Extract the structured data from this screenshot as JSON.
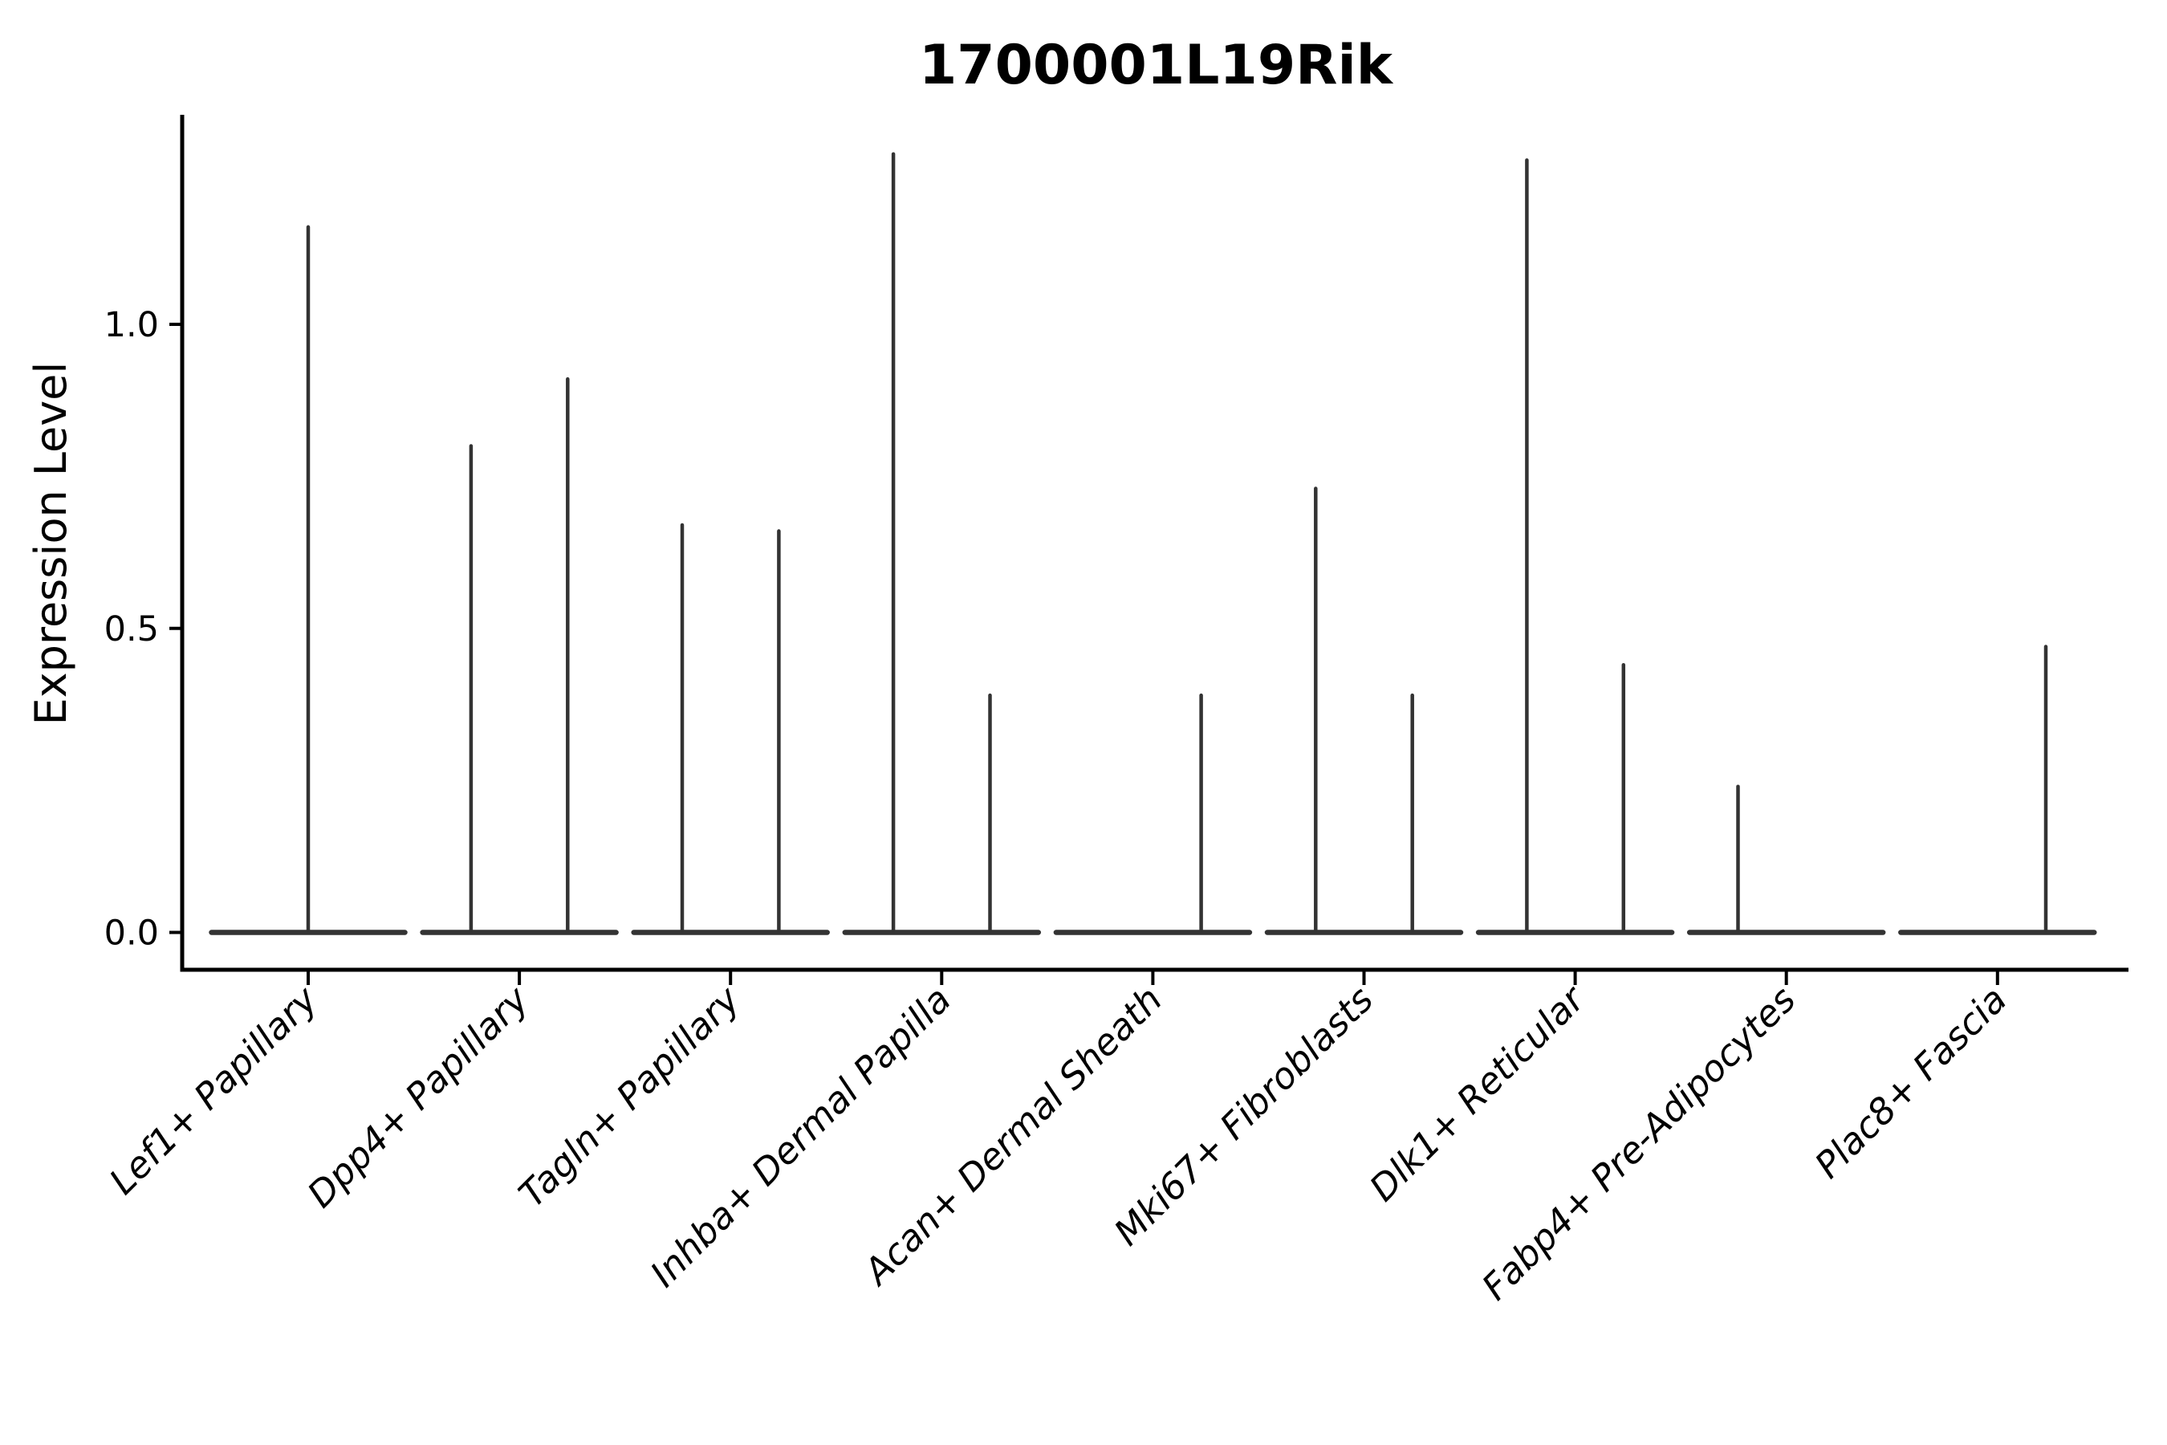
{
  "chart_data": {
    "type": "violin",
    "title": "1700001L19Rik",
    "ylabel": "Expression Level",
    "xlabel": "",
    "yticks": [
      0.0,
      0.5,
      1.0
    ],
    "ytick_labels": [
      "0.0",
      "0.5",
      "1.0"
    ],
    "ylim": [
      -0.06,
      1.34
    ],
    "grid": false,
    "legend": "none",
    "categories": [
      "Lef1+ Papillary",
      "Dpp4+ Papillary",
      "Tagln+ Papillary",
      "Inhba+ Dermal Papilla",
      "Acan+ Dermal Sheath",
      "Mki67+ Fibroblasts",
      "Dlk1+ Reticular",
      "Fabp4+ Pre-Adipocytes",
      "Plac8+ Fascia"
    ],
    "violins": [
      {
        "category_index": 0,
        "category": "Lef1+ Papillary",
        "position": "center",
        "max_expression": 1.16
      },
      {
        "category_index": 1,
        "category": "Dpp4+ Papillary",
        "position": "left",
        "max_expression": 0.8
      },
      {
        "category_index": 1,
        "category": "Dpp4+ Papillary",
        "position": "right",
        "max_expression": 0.91
      },
      {
        "category_index": 2,
        "category": "Tagln+ Papillary",
        "position": "left",
        "max_expression": 0.67
      },
      {
        "category_index": 2,
        "category": "Tagln+ Papillary",
        "position": "right",
        "max_expression": 0.66
      },
      {
        "category_index": 3,
        "category": "Inhba+ Dermal Papilla",
        "position": "left",
        "max_expression": 1.28
      },
      {
        "category_index": 3,
        "category": "Inhba+ Dermal Papilla",
        "position": "right",
        "max_expression": 0.39
      },
      {
        "category_index": 4,
        "category": "Acan+ Dermal Sheath",
        "position": "left",
        "max_expression": 0.0
      },
      {
        "category_index": 4,
        "category": "Acan+ Dermal Sheath",
        "position": "right",
        "max_expression": 0.39
      },
      {
        "category_index": 5,
        "category": "Mki67+ Fibroblasts",
        "position": "left",
        "max_expression": 0.73
      },
      {
        "category_index": 5,
        "category": "Mki67+ Fibroblasts",
        "position": "right",
        "max_expression": 0.39
      },
      {
        "category_index": 6,
        "category": "Dlk1+ Reticular",
        "position": "left",
        "max_expression": 1.27
      },
      {
        "category_index": 6,
        "category": "Dlk1+ Reticular",
        "position": "right",
        "max_expression": 0.44
      },
      {
        "category_index": 7,
        "category": "Fabp4+ Pre-Adipocytes",
        "position": "left",
        "max_expression": 0.24
      },
      {
        "category_index": 7,
        "category": "Fabp4+ Pre-Adipocytes",
        "position": "right",
        "max_expression": 0.0
      },
      {
        "category_index": 8,
        "category": "Plac8+ Fascia",
        "position": "left",
        "max_expression": 0.0
      },
      {
        "category_index": 8,
        "category": "Plac8+ Fascia",
        "position": "right",
        "max_expression": 0.47
      }
    ],
    "colors": {
      "violin_stroke": "#333333",
      "axis": "#000000",
      "text": "#000000",
      "background": "#ffffff"
    }
  }
}
